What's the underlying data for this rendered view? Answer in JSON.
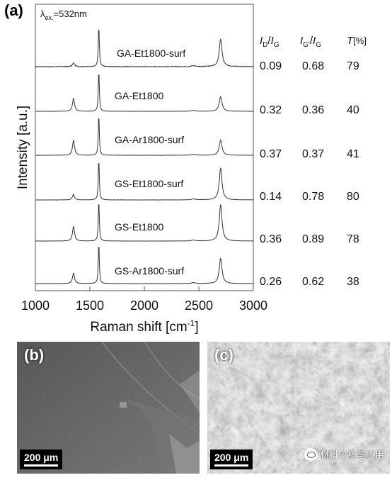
{
  "panels": {
    "a": "(a)",
    "b": "(b)",
    "c": "(c)"
  },
  "excitation": {
    "symbol": "λ",
    "subscript": "ex.",
    "value": "=532nm"
  },
  "colors": {
    "trace": "#333333",
    "frame": "#555555",
    "sem_b": "#5a5a5a",
    "sem_c": "#8a8a8a"
  },
  "table_headers": {
    "col1": {
      "base": "I",
      "sub1": "D",
      "slash": "/",
      "base2": "I",
      "sub2": "G"
    },
    "col2": {
      "base": "I",
      "sub1": "G'",
      "slash": "/",
      "base2": "I",
      "sub2": "G"
    },
    "col3": {
      "base": "T",
      "unit": "[%]"
    }
  },
  "chart_data": {
    "type": "line",
    "title": "",
    "xlabel": "Raman shift [cm⁻¹]",
    "xlabel_main": "Raman shift [cm",
    "xlabel_sup": "-1",
    "xlabel_end": "]",
    "ylabel": "Intensity [a.u.]",
    "xlim": [
      1000,
      3000
    ],
    "x_ticks": [
      1000,
      1500,
      2000,
      2500,
      3000
    ],
    "y_ticks_shown": false,
    "stacked_offset": true,
    "grid": false,
    "series": [
      {
        "name": "GA-Et1800-surf",
        "peaks": {
          "D": {
            "x": 1350,
            "height": 0.09
          },
          "G": {
            "x": 1582,
            "height": 1.0
          },
          "2D": {
            "x": 2700,
            "height": 0.68
          }
        },
        "ID_IG": "0.09",
        "IG2_IG": "0.68",
        "T": "79",
        "noise": 0.018
      },
      {
        "name": "GA-Et1800",
        "peaks": {
          "D": {
            "x": 1350,
            "height": 0.32
          },
          "G": {
            "x": 1582,
            "height": 1.0
          },
          "2D": {
            "x": 2700,
            "height": 0.36
          }
        },
        "ID_IG": "0.32",
        "IG2_IG": "0.36",
        "T": "40",
        "noise": 0.004
      },
      {
        "name": "GA-Ar1800-surf",
        "peaks": {
          "D": {
            "x": 1350,
            "height": 0.37
          },
          "G": {
            "x": 1582,
            "height": 1.0
          },
          "2D": {
            "x": 2700,
            "height": 0.37
          }
        },
        "ID_IG": "0.37",
        "IG2_IG": "0.37",
        "T": "41",
        "noise": 0.004
      },
      {
        "name": "GS-Et1800-surf",
        "peaks": {
          "D": {
            "x": 1350,
            "height": 0.14
          },
          "G": {
            "x": 1582,
            "height": 1.0
          },
          "2D": {
            "x": 2700,
            "height": 0.78
          }
        },
        "ID_IG": "0.14",
        "IG2_IG": "0.78",
        "T": "80",
        "noise": 0.004
      },
      {
        "name": "GS-Et1800",
        "peaks": {
          "D": {
            "x": 1350,
            "height": 0.36
          },
          "G": {
            "x": 1582,
            "height": 1.0
          },
          "2D": {
            "x": 2700,
            "height": 0.89
          }
        },
        "ID_IG": "0.36",
        "IG2_IG": "0.89",
        "T": "78",
        "noise": 0.004
      },
      {
        "name": "GS-Ar1800-surf",
        "peaks": {
          "D": {
            "x": 1350,
            "height": 0.26
          },
          "G": {
            "x": 1582,
            "height": 1.0
          },
          "2D": {
            "x": 2700,
            "height": 0.62
          }
        },
        "ID_IG": "0.26",
        "IG2_IG": "0.62",
        "T": "38",
        "noise": 0.004
      }
    ]
  },
  "sem_b": {
    "scalebar": "200 μm"
  },
  "sem_c": {
    "scalebar": "200 μm"
  },
  "watermark": {
    "text": "材料分析与应用",
    "icon": "wechat-icon"
  }
}
